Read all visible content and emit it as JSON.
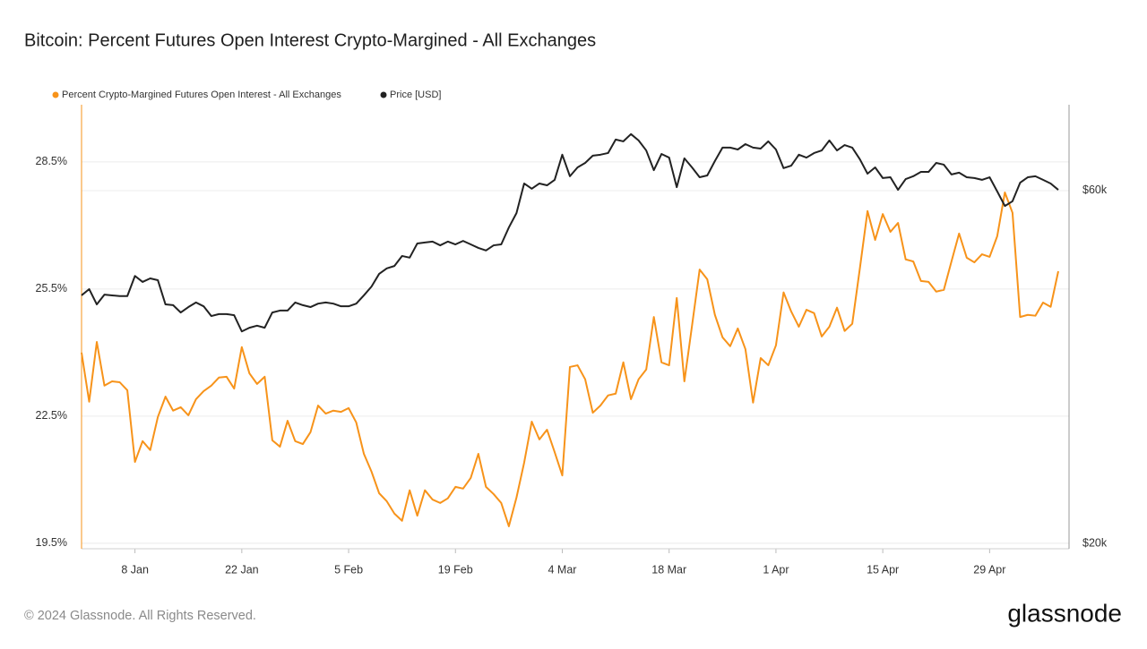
{
  "chart_data": {
    "type": "line",
    "title": "Bitcoin: Percent Futures Open Interest Crypto-Margined - All Exchanges",
    "categories": [
      null,
      null,
      null,
      null,
      null,
      null,
      null,
      "8 Jan",
      null,
      null,
      null,
      null,
      null,
      null,
      null,
      null,
      null,
      null,
      null,
      null,
      null,
      "22 Jan",
      null,
      null,
      null,
      null,
      null,
      null,
      null,
      null,
      null,
      null,
      null,
      null,
      null,
      "5 Feb",
      null,
      null,
      null,
      null,
      null,
      null,
      null,
      null,
      null,
      null,
      null,
      null,
      null,
      "19 Feb",
      null,
      null,
      null,
      null,
      null,
      null,
      null,
      null,
      null,
      null,
      null,
      null,
      null,
      "4 Mar",
      null,
      null,
      null,
      null,
      null,
      null,
      null,
      null,
      null,
      null,
      null,
      null,
      null,
      "18 Mar",
      null,
      null,
      null,
      null,
      null,
      null,
      null,
      null,
      null,
      null,
      null,
      null,
      null,
      "1 Apr",
      null,
      null,
      null,
      null,
      null,
      null,
      null,
      null,
      null,
      null,
      null,
      null,
      null,
      "15 Apr",
      null,
      null,
      null,
      null,
      null,
      null,
      null,
      null,
      null,
      null,
      null,
      null,
      null,
      "29 Apr",
      null,
      null,
      null,
      null,
      null,
      null,
      null,
      null,
      null
    ],
    "series": [
      {
        "name": "Percent Crypto-Margined Futures Open Interest - All Exchanges",
        "color": "#f7931a",
        "axis": "y",
        "values": [
          24.0,
          22.84,
          24.25,
          23.22,
          23.32,
          23.3,
          23.11,
          21.42,
          21.91,
          21.7,
          22.48,
          22.96,
          22.63,
          22.71,
          22.52,
          22.9,
          23.09,
          23.22,
          23.41,
          23.43,
          23.15,
          24.13,
          23.51,
          23.26,
          23.43,
          21.93,
          21.78,
          22.39,
          21.91,
          21.84,
          22.12,
          22.75,
          22.56,
          22.63,
          22.6,
          22.69,
          22.35,
          21.61,
          21.19,
          20.68,
          20.49,
          20.2,
          20.03,
          20.75,
          20.15,
          20.75,
          20.53,
          20.45,
          20.56,
          20.83,
          20.79,
          21.04,
          21.61,
          20.83,
          20.66,
          20.45,
          19.9,
          20.58,
          21.4,
          22.37,
          21.95,
          22.18,
          21.65,
          21.1,
          23.66,
          23.7,
          23.37,
          22.58,
          22.75,
          22.99,
          23.03,
          23.77,
          22.9,
          23.37,
          23.6,
          24.84,
          23.77,
          23.7,
          25.29,
          23.32,
          24.63,
          25.96,
          25.73,
          24.89,
          24.36,
          24.15,
          24.57,
          24.08,
          22.82,
          23.87,
          23.7,
          24.17,
          25.42,
          24.97,
          24.61,
          25.01,
          24.93,
          24.38,
          24.61,
          25.06,
          24.51,
          24.68,
          25.99,
          27.34,
          26.66,
          27.27,
          26.85,
          27.06,
          26.2,
          26.15,
          25.69,
          25.67,
          25.44,
          25.48,
          26.15,
          26.81,
          26.24,
          26.13,
          26.32,
          26.26,
          26.75,
          27.78,
          27.3,
          24.84,
          24.89,
          24.87,
          25.18,
          25.08,
          25.92
        ]
      },
      {
        "name": "Price [USD]",
        "color": "#222222",
        "axis": "y2",
        "values": [
          43300,
          44150,
          42100,
          43400,
          43300,
          43200,
          43200,
          46000,
          45150,
          45650,
          45400,
          42100,
          42000,
          41050,
          41750,
          42350,
          41850,
          40600,
          40850,
          40850,
          40700,
          38700,
          39150,
          39400,
          39150,
          41050,
          41300,
          41300,
          42350,
          42000,
          41750,
          42200,
          42350,
          42200,
          41850,
          41850,
          42200,
          43300,
          44500,
          46300,
          47100,
          47450,
          48950,
          48700,
          50900,
          51050,
          51200,
          50600,
          51200,
          50750,
          51300,
          50750,
          50200,
          49800,
          50600,
          50750,
          53500,
          55950,
          61350,
          60350,
          61350,
          61000,
          62050,
          67100,
          62750,
          64500,
          65400,
          66900,
          67100,
          67450,
          70350,
          69950,
          71550,
          70150,
          68000,
          63950,
          67250,
          66500,
          60650,
          66350,
          64500,
          62550,
          62900,
          65800,
          68600,
          68600,
          68200,
          69350,
          68600,
          68400,
          69950,
          68200,
          64350,
          64850,
          67100,
          66500,
          67450,
          68000,
          70150,
          68000,
          69150,
          68600,
          66150,
          63250,
          64500,
          62400,
          62550,
          60150,
          62200,
          62750,
          63600,
          63600,
          65400,
          65050,
          63100,
          63450,
          62550,
          62400,
          62050,
          62550,
          59850,
          57200,
          58050,
          61500,
          62550,
          62750,
          62050,
          61350,
          60150
        ]
      }
    ],
    "ylim": [
      19.37,
      29.85
    ],
    "yticks": [
      {
        "value": 19.5,
        "label": "19.5%"
      },
      {
        "value": 22.5,
        "label": "22.5%"
      },
      {
        "value": 25.5,
        "label": "25.5%"
      },
      {
        "value": 28.5,
        "label": "28.5%"
      }
    ],
    "y2lim": [
      19670,
      78400
    ],
    "y2ticks": [
      {
        "value": 20000,
        "label": "$20k"
      },
      {
        "value": 60000,
        "label": "$60k"
      }
    ],
    "y2scale": "log",
    "grid": true
  },
  "copyright": "© 2024 Glassnode. All Rights Reserved.",
  "brand": "glassnode"
}
